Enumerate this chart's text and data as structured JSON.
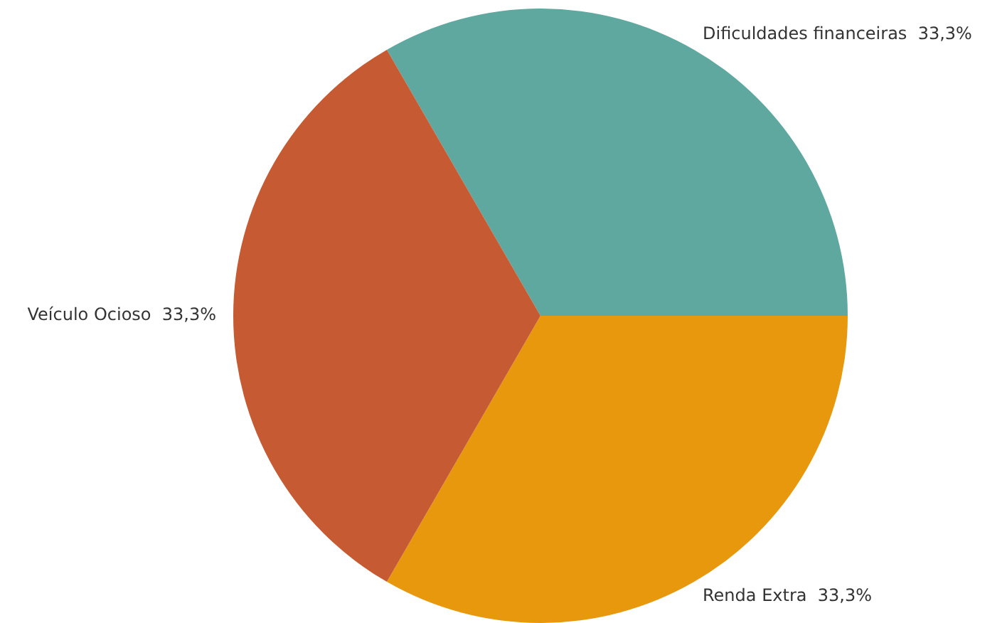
{
  "chart_data": {
    "type": "pie",
    "categories": [
      "Dificuldades financeiras",
      "Renda Extra",
      "Veículo Ocioso"
    ],
    "values": [
      33.3,
      33.3,
      33.3
    ],
    "colors": [
      "#5fa8a0",
      "#e8980c",
      "#c55a33"
    ],
    "value_labels": [
      "33,3%",
      "33,3%",
      "33,3%"
    ],
    "legend": false
  }
}
